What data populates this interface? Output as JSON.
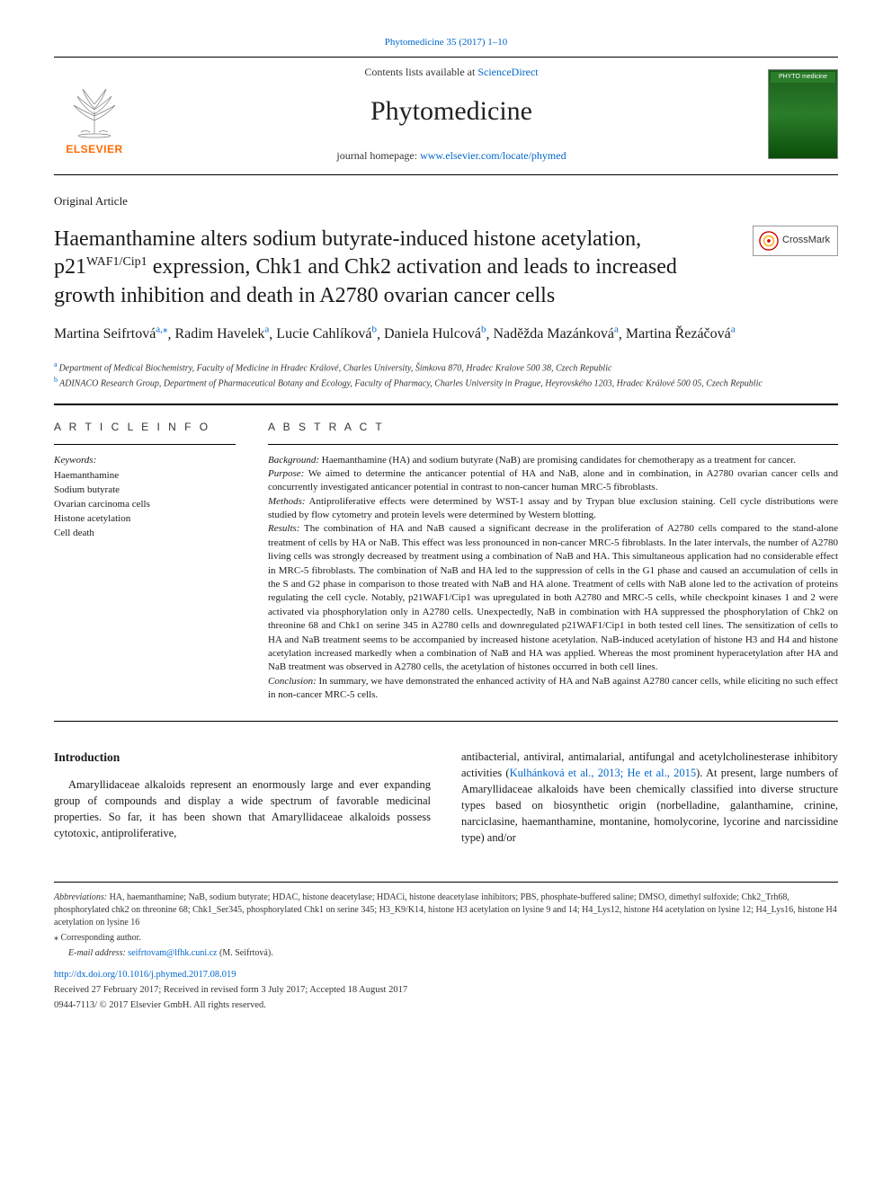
{
  "citation": {
    "text": "Phytomedicine 35 (2017) 1–10",
    "href": "#"
  },
  "masthead": {
    "contents_prefix": "Contents lists available at ",
    "contents_link": "ScienceDirect",
    "journal_name": "Phytomedicine",
    "homepage_prefix": "journal homepage: ",
    "homepage_link": "www.elsevier.com/locate/phymed",
    "publisher_name": "ELSEVIER",
    "cover_title": "PHYTO medicine"
  },
  "article_type": "Original Article",
  "title": {
    "pre": "Haemanthamine alters sodium butyrate-induced histone acetylation, p21",
    "sup": "WAF1/Cip1",
    "post": " expression, Chk1 and Chk2 activation and leads to increased growth inhibition and death in A2780 ovarian cancer cells"
  },
  "crossmark_label": "CrossMark",
  "authors": [
    {
      "name": "Martina Seifrtová",
      "affs": "a,",
      "corr": "⁎"
    },
    {
      "name": "Radim Havelek",
      "affs": "a"
    },
    {
      "name": "Lucie Cahlíková",
      "affs": "b"
    },
    {
      "name": "Daniela Hulcová",
      "affs": "b"
    },
    {
      "name": "Naděžda Mazánková",
      "affs": "a"
    },
    {
      "name": "Martina Řezáčová",
      "affs": "a"
    }
  ],
  "affiliations": [
    {
      "label": "a",
      "text": "Department of Medical Biochemistry, Faculty of Medicine in Hradec Králové, Charles University, Šimkova 870, Hradec Kralove 500 38, Czech Republic"
    },
    {
      "label": "b",
      "text": "ADINACO Research Group, Department of Pharmaceutical Botany and Ecology, Faculty of Pharmacy, Charles University in Prague, Heyrovského 1203, Hradec Králové 500 05, Czech Republic"
    }
  ],
  "article_info": {
    "heading": "A R T I C L E  I N F O",
    "keywords_label": "Keywords:",
    "keywords": [
      "Haemanthamine",
      "Sodium butyrate",
      "Ovarian carcinoma cells",
      "Histone acetylation",
      "Cell death"
    ]
  },
  "abstract": {
    "heading": "A B S T R A C T",
    "sections": [
      {
        "label": "Background:",
        "text": " Haemanthamine (HA) and sodium butyrate (NaB) are promising candidates for chemotherapy as a treatment for cancer."
      },
      {
        "label": "Purpose:",
        "text": " We aimed to determine the anticancer potential of HA and NaB, alone and in combination, in A2780 ovarian cancer cells and concurrently investigated anticancer potential in contrast to non-cancer human MRC-5 fibroblasts."
      },
      {
        "label": "Methods:",
        "text": " Antiproliferative effects were determined by WST-1 assay and by Trypan blue exclusion staining. Cell cycle distributions were studied by flow cytometry and protein levels were determined by Western blotting."
      },
      {
        "label": "Results:",
        "text": " The combination of HA and NaB caused a significant decrease in the proliferation of A2780 cells compared to the stand-alone treatment of cells by HA or NaB. This effect was less pronounced in non-cancer MRC-5 fibroblasts. In the later intervals, the number of A2780 living cells was strongly decreased by treatment using a combination of NaB and HA. This simultaneous application had no considerable effect in MRC-5 fibroblasts. The combination of NaB and HA led to the suppression of cells in the G1 phase and caused an accumulation of cells in the S and G2 phase in comparison to those treated with NaB and HA alone. Treatment of cells with NaB alone led to the activation of proteins regulating the cell cycle. Notably, p21WAF1/Cip1 was upregulated in both A2780 and MRC-5 cells, while checkpoint kinases 1 and 2 were activated via phosphorylation only in A2780 cells. Unexpectedly, NaB in combination with HA suppressed the phosphorylation of Chk2 on threonine 68 and Chk1 on serine 345 in A2780 cells and downregulated p21WAF1/Cip1 in both tested cell lines. The sensitization of cells to HA and NaB treatment seems to be accompanied by increased histone acetylation. NaB-induced acetylation of histone H3 and H4 and histone acetylation increased markedly when a combination of NaB and HA was applied. Whereas the most prominent hyperacetylation after HA and NaB treatment was observed in A2780 cells, the acetylation of histones occurred in both cell lines."
      },
      {
        "label": "Conclusion:",
        "text": " In summary, we have demonstrated the enhanced activity of HA and NaB against A2780 cancer cells, while eliciting no such effect in non-cancer MRC-5 cells."
      }
    ]
  },
  "body": {
    "heading": "Introduction",
    "col1": "Amaryllidaceae alkaloids represent an enormously large and ever expanding group of compounds and display a wide spectrum of favorable medicinal properties. So far, it has been shown that Amaryllidaceae alkaloids possess cytotoxic, antiproliferative,",
    "col2_pre": "antibacterial, antiviral, antimalarial, antifungal and acetylcholinesterase inhibitory activities (",
    "col2_link": "Kulhánková et al., 2013; He et al., 2015",
    "col2_post": "). At present, large numbers of Amaryllidaceae alkaloids have been chemically classified into diverse structure types based on biosynthetic origin (norbelladine, galanthamine, crinine, narciclasine, haemanthamine, montanine, homolycorine, lycorine and narcissidine type) and/or"
  },
  "footnotes": {
    "abbrev_label": "Abbreviations:",
    "abbrev_text": " HA, haemanthamine; NaB, sodium butyrate; HDAC, histone deacetylase; HDACi, histone deacetylase inhibitors; PBS, phosphate-buffered saline; DMSO, dimethyl sulfoxide; Chk2_Trh68, phosphorylated chk2 on threonine 68; Chk1_Ser345, phosphorylated Chk1 on serine 345; H3_K9/K14, histone H3 acetylation on lysine 9 and 14; H4_Lys12, histone H4 acetylation on lysine 12; H4_Lys16, histone H4 acetylation on lysine 16",
    "corr_marker": "⁎",
    "corr_text": " Corresponding author.",
    "email_label": "E-mail address: ",
    "email": "seifrtovam@lfhk.cuni.cz",
    "email_attr": " (M. Seifrtová)."
  },
  "doi": "http://dx.doi.org/10.1016/j.phymed.2017.08.019",
  "dates": "Received 27 February 2017; Received in revised form 3 July 2017; Accepted 18 August 2017",
  "copyright": "0944-7113/ © 2017 Elsevier GmbH. All rights reserved."
}
